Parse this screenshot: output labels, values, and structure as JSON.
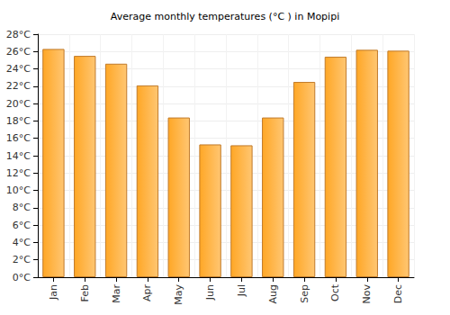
{
  "chart_data": {
    "type": "bar",
    "title": "Average monthly temperatures (°C ) in Mopipi",
    "categories": [
      "Jan",
      "Feb",
      "Mar",
      "Apr",
      "May",
      "Jun",
      "Jul",
      "Aug",
      "Sep",
      "Oct",
      "Nov",
      "Dec"
    ],
    "values": [
      26.3,
      25.5,
      24.6,
      22.1,
      18.4,
      15.3,
      15.2,
      18.4,
      22.5,
      25.4,
      26.2,
      26.1
    ],
    "color": "#ffa726",
    "ylim": [
      0,
      28
    ],
    "yticks": [
      {
        "value": 0,
        "label": "0°C"
      },
      {
        "value": 2,
        "label": "2°C"
      },
      {
        "value": 4,
        "label": "4°C"
      },
      {
        "value": 6,
        "label": "6°C"
      },
      {
        "value": 8,
        "label": "8°C"
      },
      {
        "value": 10,
        "label": "10°C"
      },
      {
        "value": 12,
        "label": "12°C"
      },
      {
        "value": 14,
        "label": "14°C"
      },
      {
        "value": 16,
        "label": "16°C"
      },
      {
        "value": 18,
        "label": "18°C"
      },
      {
        "value": 20,
        "label": "20°C"
      },
      {
        "value": 22,
        "label": "22°C"
      },
      {
        "value": 24,
        "label": "24°C"
      },
      {
        "value": 26,
        "label": "26°C"
      },
      {
        "value": 28,
        "label": "28°C"
      }
    ],
    "grid": true
  }
}
